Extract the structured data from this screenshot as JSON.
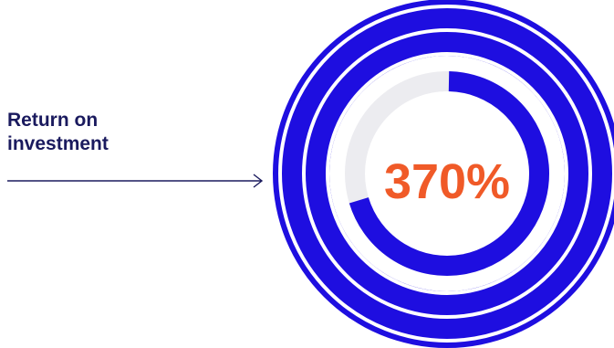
{
  "label": {
    "line1": "Return on",
    "line2": "investment"
  },
  "chart_data": {
    "type": "radial",
    "title": "",
    "annotation": "Return on investment",
    "center_label": "370%",
    "value_percent": 370,
    "full_rings": 3,
    "partial_ring_percent": 70
  },
  "colors": {
    "ring": "#1e0ee0",
    "track": "#ececf0",
    "center_text": "#f05a28",
    "label_text": "#1a1a5e",
    "arrow": "#1a1a5e"
  }
}
